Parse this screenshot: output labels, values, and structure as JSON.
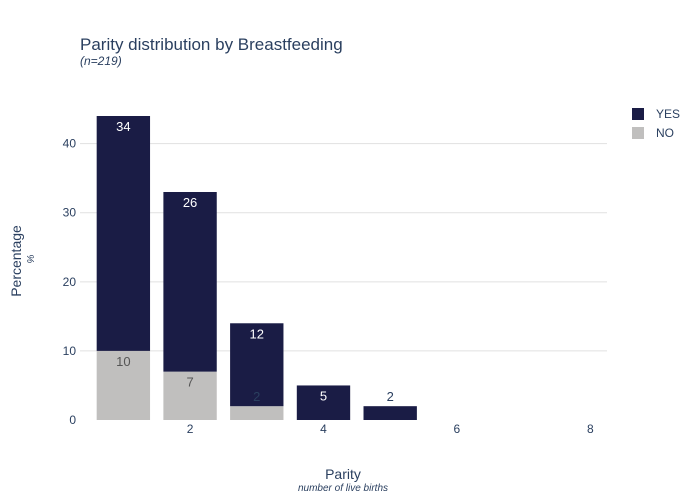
{
  "chart_data": {
    "type": "bar",
    "barmode": "stack",
    "title": "Parity distribution by Breastfeeding",
    "subtitle": "(n=219)",
    "xlabel": "Parity",
    "xlabel_sub": "number of live births",
    "ylabel": "Percentage",
    "ylabel_sub": "%",
    "x": [
      1,
      2,
      3,
      4,
      5
    ],
    "xlim": [
      0.35,
      8.25
    ],
    "xticks": [
      2,
      4,
      6,
      8
    ],
    "ylim": [
      0,
      44
    ],
    "yticks": [
      0,
      10,
      20,
      30,
      40
    ],
    "grid": true,
    "legend_position": "top-right",
    "series": [
      {
        "name": "NO",
        "color": "#c0bfbe",
        "label_color": "#555555",
        "values": [
          10,
          7,
          2,
          0,
          0
        ],
        "labels": [
          "10",
          "7",
          "2",
          "",
          ""
        ]
      },
      {
        "name": "YES",
        "color": "#1a1c45",
        "label_color": "#ffffff",
        "values": [
          34,
          26,
          12,
          5,
          2
        ],
        "labels": [
          "34",
          "26",
          "12",
          "5",
          "2"
        ]
      }
    ],
    "legend_order": [
      "YES",
      "NO"
    ]
  }
}
